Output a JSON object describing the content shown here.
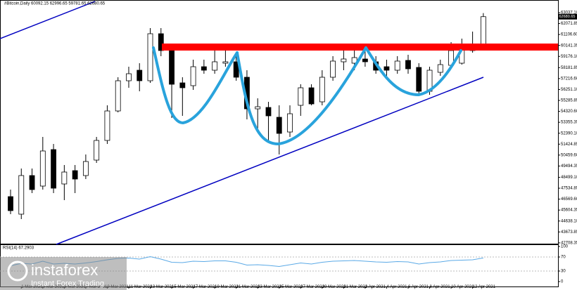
{
  "chart_data": {
    "type": "candlestick",
    "title": "#Bitcoin,Daily 60092.15 62996.65 59781.65 62680.65",
    "categories": [
      null,
      "1 Mar 2021",
      null,
      "3 Mar 2021",
      null,
      "5 Mar 2021",
      null,
      "7 Mar 2021",
      null,
      "9 Mar 2021",
      null,
      "11 Mar 2021",
      null,
      "13 Mar 2021",
      null,
      "15 Mar 2021",
      null,
      "17 Mar 2021",
      null,
      "19 Mar 2021",
      null,
      "21 Mar 2021",
      null,
      "23 Mar 2021",
      null,
      "25 Mar 2021",
      null,
      "27 Mar 2021",
      null,
      "29 Mar 2021",
      null,
      "31 Mar 2021",
      null,
      "2 Apr 2021",
      null,
      "4 Apr 2021",
      null,
      "6 Apr 2021",
      null,
      "8 Apr 2021",
      null,
      "10 Apr 2021",
      null,
      "12 Apr 2021",
      null
    ],
    "open": [
      46793,
      45243,
      48653,
      47723,
      50947,
      47909,
      49087,
      48653,
      50017,
      51753,
      54357,
      57023,
      57953,
      57023,
      61177,
      59689,
      56837,
      56589,
      58263,
      57953,
      58573,
      58697,
      57333,
      54543,
      54667,
      53799,
      52497,
      54853,
      56403,
      55163,
      57333,
      58697,
      58573,
      58945,
      58697,
      58263,
      57953,
      58821,
      58201,
      56093,
      57767,
      58387,
      58573,
      59689,
      60092.15
    ],
    "close": [
      45553,
      48653,
      47413,
      50823,
      47537,
      48963,
      48343,
      49893,
      51753,
      54357,
      57023,
      57643,
      57023,
      61177,
      59689,
      56713,
      56403,
      58263,
      57953,
      58697,
      58697,
      57333,
      54543,
      54729,
      53923,
      52373,
      54109,
      56403,
      54977,
      57333,
      58759,
      58945,
      59069,
      58697,
      57953,
      57953,
      58759,
      58077,
      56093,
      57953,
      58449,
      59689,
      59937,
      60247,
      62680.65
    ],
    "high": [
      47413,
      49273,
      49273,
      52063,
      51443,
      49583,
      49583,
      50513,
      52063,
      54853,
      57333,
      58263,
      58573,
      61673,
      61673,
      60123,
      57333,
      58883,
      58883,
      59813,
      59689,
      59503,
      57953,
      55473,
      55163,
      54853,
      54853,
      56713,
      56713,
      57953,
      59193,
      59813,
      59813,
      59937,
      59193,
      58883,
      59193,
      59317,
      58573,
      58263,
      58883,
      60433,
      60743,
      61363,
      62996.65
    ],
    "low": [
      45243,
      44809,
      47103,
      47413,
      47103,
      46483,
      47103,
      48343,
      49769,
      51443,
      54233,
      56403,
      56093,
      56837,
      59193,
      53737,
      53923,
      56217,
      57643,
      57643,
      58263,
      57023,
      53613,
      52683,
      51753,
      50513,
      52063,
      53923,
      54853,
      54853,
      57023,
      57953,
      57953,
      58263,
      57643,
      57457,
      57643,
      57643,
      55783,
      55783,
      57457,
      58139,
      58449,
      59499,
      59781.65
    ],
    "bull_color": "#ffffff",
    "bear_color": "#000000",
    "last_price_label": "62680.65",
    "ylim": [
      42639,
      64153
    ],
    "yticks": [
      {
        "value": 63037.1,
        "label": "63037.10"
      },
      {
        "value": 62071.85,
        "label": "62071.85"
      },
      {
        "value": 61106.6,
        "label": "61106.60"
      },
      {
        "value": 60141.35,
        "label": "60141.35"
      },
      {
        "value": 59176.1,
        "label": "59176.10"
      },
      {
        "value": 58181.85,
        "label": "58181.85"
      },
      {
        "value": 57216.6,
        "label": "57216.60"
      },
      {
        "value": 56251.1,
        "label": "56251.10"
      },
      {
        "value": 55285.85,
        "label": "55285.85"
      },
      {
        "value": 54320.6,
        "label": "54320.60"
      },
      {
        "value": 53355.35,
        "label": "53355.35"
      },
      {
        "value": 52390.1,
        "label": "52390.10"
      },
      {
        "value": 51424.85,
        "label": "51424.85"
      },
      {
        "value": 50459.6,
        "label": "50459.60"
      },
      {
        "value": 49494.35,
        "label": "49494.35"
      },
      {
        "value": 48499.1,
        "label": "48499.10"
      },
      {
        "value": 47534.85,
        "label": "47534.85"
      },
      {
        "value": 46569.6,
        "label": "46569.60"
      },
      {
        "value": 45604.35,
        "label": "45604.35"
      },
      {
        "value": 44638.1,
        "label": "44638.10"
      },
      {
        "value": 43673.85,
        "label": "43673.85"
      },
      {
        "value": 42708.35,
        "label": "42708.35"
      }
    ],
    "grid": false,
    "rsi": {
      "label": "RSI(14) 67.2903",
      "color": "#5aa9e6",
      "values": [
        45,
        52,
        50,
        58,
        50,
        52,
        50,
        53,
        57,
        62,
        66,
        67,
        64,
        71,
        64,
        55,
        54,
        58,
        57,
        59,
        59,
        55,
        47,
        48,
        46,
        43,
        48,
        53,
        50,
        55,
        58,
        59,
        60,
        58,
        56,
        55,
        57,
        56,
        50,
        54,
        56,
        60,
        61,
        62,
        67.2903
      ],
      "ylim": [
        0,
        100
      ],
      "yticks": [
        100,
        70,
        30,
        0
      ]
    },
    "watermark": {
      "brand": "instaforex",
      "tagline": "Instant Forex Trading"
    }
  }
}
